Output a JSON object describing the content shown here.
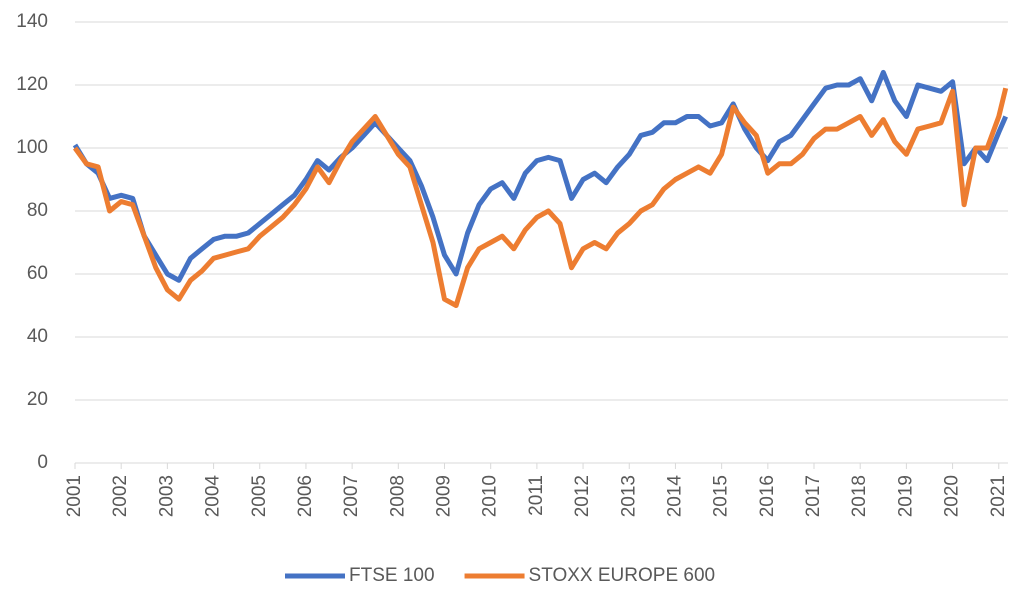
{
  "chart_data": {
    "type": "line",
    "x": [
      2001,
      2001.25,
      2001.5,
      2001.75,
      2002,
      2002.25,
      2002.5,
      2002.75,
      2003,
      2003.25,
      2003.5,
      2003.75,
      2004,
      2004.25,
      2004.5,
      2004.75,
      2005,
      2005.25,
      2005.5,
      2005.75,
      2006,
      2006.25,
      2006.5,
      2006.75,
      2007,
      2007.25,
      2007.5,
      2007.75,
      2008,
      2008.25,
      2008.5,
      2008.75,
      2009,
      2009.25,
      2009.5,
      2009.75,
      2010,
      2010.25,
      2010.5,
      2010.75,
      2011,
      2011.25,
      2011.5,
      2011.75,
      2012,
      2012.25,
      2012.5,
      2012.75,
      2013,
      2013.25,
      2013.5,
      2013.75,
      2014,
      2014.25,
      2014.5,
      2014.75,
      2015,
      2015.25,
      2015.5,
      2015.75,
      2016,
      2016.25,
      2016.5,
      2016.75,
      2017,
      2017.25,
      2017.5,
      2017.75,
      2018,
      2018.25,
      2018.5,
      2018.75,
      2019,
      2019.25,
      2019.5,
      2019.75,
      2020,
      2020.25,
      2020.5,
      2020.75,
      2021,
      2021.15
    ],
    "series": [
      {
        "name": "FTSE 100",
        "color": "#4472c4",
        "values": [
          101,
          95,
          92,
          84,
          85,
          84,
          72,
          66,
          60,
          58,
          65,
          68,
          71,
          72,
          72,
          73,
          76,
          79,
          82,
          85,
          90,
          96,
          93,
          97,
          100,
          104,
          108,
          104,
          100,
          96,
          88,
          78,
          66,
          60,
          73,
          82,
          87,
          89,
          84,
          92,
          96,
          97,
          96,
          84,
          90,
          92,
          89,
          94,
          98,
          104,
          105,
          108,
          108,
          110,
          110,
          107,
          108,
          114,
          106,
          100,
          96,
          102,
          104,
          109,
          114,
          119,
          120,
          120,
          122,
          115,
          124,
          115,
          110,
          120,
          119,
          118,
          121,
          95,
          100,
          96,
          105,
          110
        ]
      },
      {
        "name": "STOXX EUROPE 600",
        "color": "#ed7d31",
        "values": [
          100,
          95,
          94,
          80,
          83,
          82,
          72,
          62,
          55,
          52,
          58,
          61,
          65,
          66,
          67,
          68,
          72,
          75,
          78,
          82,
          87,
          94,
          89,
          96,
          102,
          106,
          110,
          104,
          98,
          94,
          82,
          70,
          52,
          50,
          62,
          68,
          70,
          72,
          68,
          74,
          78,
          80,
          76,
          62,
          68,
          70,
          68,
          73,
          76,
          80,
          82,
          87,
          90,
          92,
          94,
          92,
          98,
          113,
          108,
          104,
          92,
          95,
          95,
          98,
          103,
          106,
          106,
          108,
          110,
          104,
          109,
          102,
          98,
          106,
          107,
          108,
          118,
          82,
          100,
          100,
          110,
          119
        ]
      }
    ],
    "xlim": [
      2001,
      2021.2
    ],
    "xticks": [
      2001,
      2002,
      2003,
      2004,
      2005,
      2006,
      2007,
      2008,
      2009,
      2010,
      2011,
      2012,
      2013,
      2014,
      2015,
      2016,
      2017,
      2018,
      2019,
      2020,
      2021
    ],
    "ylim": [
      0,
      140
    ],
    "yticks": [
      0,
      20,
      40,
      60,
      80,
      100,
      120,
      140
    ],
    "grid": true,
    "legend": "bottom"
  }
}
